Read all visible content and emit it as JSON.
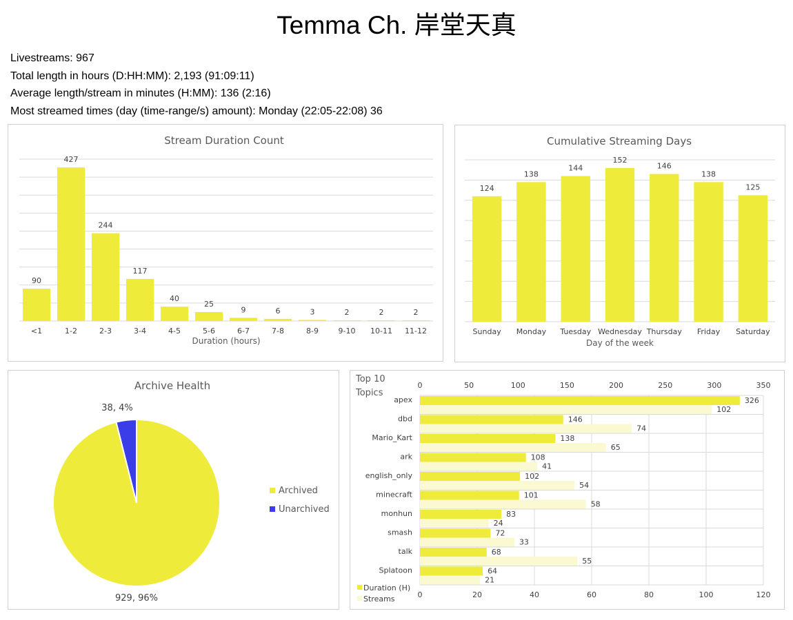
{
  "page": {
    "title": "Temma Ch. 岸堂天真",
    "stats": [
      "Livestreams: 967",
      "Total length in hours (D:HH:MM): 2,193 (91:09:11)",
      "Average length/stream in minutes (H:MM): 136 (2:16)",
      "Most streamed times (day (time-range/s) amount): Monday (22:05-22:08) 36"
    ]
  },
  "colors": {
    "yellow": "#eeeb3b",
    "pale": "#fbf9d2",
    "blue": "#3b3de8"
  },
  "chart_data": [
    {
      "id": "duration",
      "type": "bar",
      "title": "Stream Duration Count",
      "xlabel": "Duration (hours)",
      "ylabel": "",
      "categories": [
        "<1",
        "1-2",
        "2-3",
        "3-4",
        "4-5",
        "5-6",
        "6-7",
        "7-8",
        "8-9",
        "9-10",
        "10-11",
        "11-12"
      ],
      "values": [
        90,
        427,
        244,
        117,
        40,
        25,
        9,
        6,
        3,
        2,
        2,
        2
      ],
      "ylim": [
        0,
        450
      ],
      "grid": true,
      "data_labels": true
    },
    {
      "id": "days",
      "type": "bar",
      "title": "Cumulative Streaming Days",
      "xlabel": "Day of the week",
      "ylabel": "",
      "categories": [
        "Sunday",
        "Monday",
        "Tuesday",
        "Wednesday",
        "Thursday",
        "Friday",
        "Saturday"
      ],
      "values": [
        124,
        138,
        144,
        152,
        146,
        138,
        125
      ],
      "ylim": [
        0,
        160
      ],
      "grid": true,
      "data_labels": true
    },
    {
      "id": "archive",
      "type": "pie",
      "title": "Archive Health",
      "labels": [
        "Archived",
        "Unarchived"
      ],
      "values": [
        929,
        38
      ],
      "percents": [
        96,
        4
      ],
      "data_labels": [
        "929, 96%",
        "38, 4%"
      ],
      "legend": "right"
    },
    {
      "id": "topics",
      "type": "bar",
      "orientation": "horizontal",
      "title": "Top 10 Topics",
      "categories": [
        "apex",
        "dbd",
        "Mario_Kart",
        "ark",
        "english_only",
        "minecraft",
        "monhun",
        "smash",
        "talk",
        "Splatoon"
      ],
      "series": [
        {
          "name": "Duration (H)",
          "axis": "top",
          "values": [
            326,
            146,
            138,
            108,
            102,
            101,
            83,
            72,
            68,
            64
          ]
        },
        {
          "name": "Streams",
          "axis": "bottom",
          "values": [
            102,
            74,
            65,
            41,
            54,
            58,
            24,
            33,
            55,
            21
          ]
        }
      ],
      "top_axis": {
        "range": [
          0,
          350
        ],
        "ticks": [
          0,
          50,
          100,
          150,
          200,
          250,
          300,
          350
        ]
      },
      "bottom_axis": {
        "range": [
          0,
          120
        ],
        "ticks": [
          0,
          20,
          40,
          60,
          80,
          100,
          120
        ]
      },
      "legend": "bottom-left"
    }
  ]
}
